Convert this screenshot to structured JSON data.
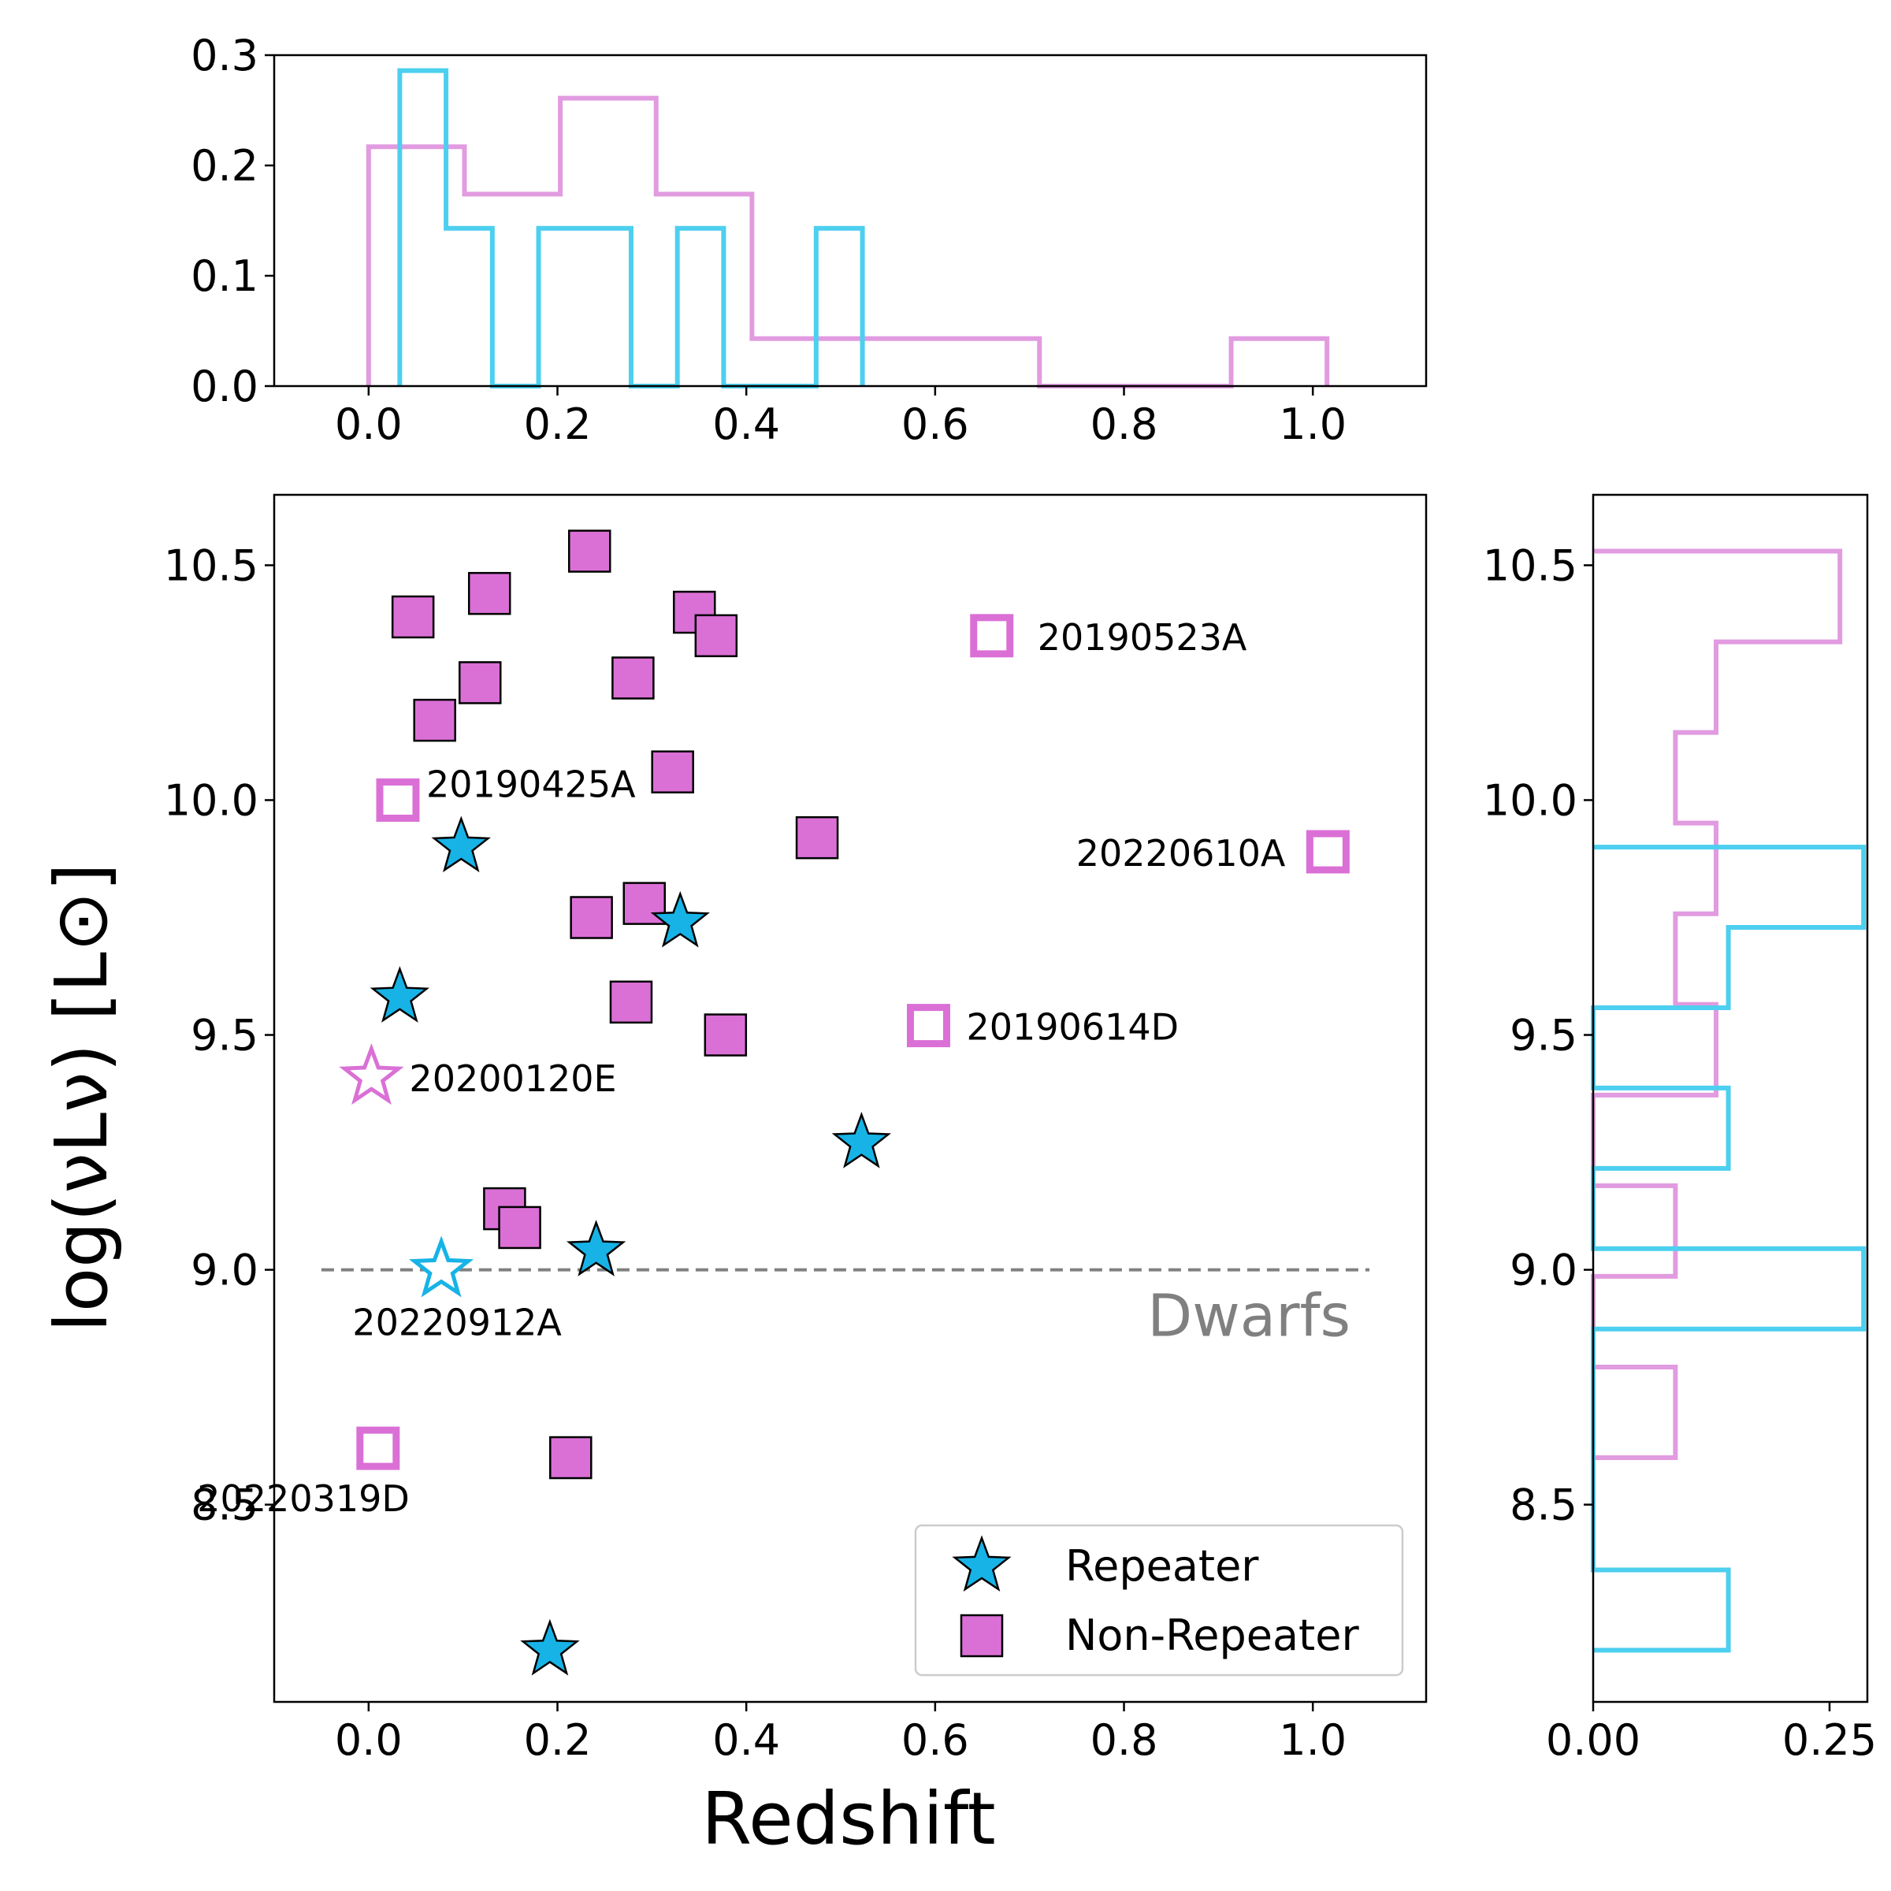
{
  "chart_data": {
    "type": "scatter",
    "xlabel": "Redshift",
    "ylabel": "log(νLν) [L⊙]",
    "xlim": [
      -0.1,
      1.12
    ],
    "ylim": [
      8.08,
      10.65
    ],
    "x_ticks": [
      "0.0",
      "0.2",
      "0.4",
      "0.6",
      "0.8",
      "1.0"
    ],
    "y_ticks": [
      "8.5",
      "9.0",
      "9.5",
      "10.0",
      "10.5"
    ],
    "legend": {
      "placement": "lower-right",
      "entries": [
        "Repeater",
        "Non-Repeater"
      ]
    },
    "colors": {
      "repeater": "#17b3e6",
      "non_repeater": "#da70d6",
      "hist_repeater": "#4dcfef",
      "hist_non_repeater": "#e19be0",
      "threshold": "#808080"
    },
    "threshold": {
      "y": 9.0,
      "x_range": [
        -0.05,
        1.06
      ],
      "label": "Dwarfs"
    },
    "series": [
      {
        "name": "Repeater",
        "marker": "star",
        "filled": [
          {
            "x": 0.098,
            "y": 9.9
          },
          {
            "x": 0.033,
            "y": 9.58
          },
          {
            "x": 0.33,
            "y": 9.74
          },
          {
            "x": 0.522,
            "y": 9.27
          },
          {
            "x": 0.241,
            "y": 9.04
          },
          {
            "x": 0.192,
            "y": 8.19
          }
        ],
        "open": [
          {
            "x": 0.003,
            "y": 9.41,
            "label": "20200120E",
            "color": "#da70d6"
          },
          {
            "x": 0.077,
            "y": 9.0,
            "label": "20220912A",
            "color": "#17b3e6"
          }
        ]
      },
      {
        "name": "Non-Repeater",
        "marker": "square",
        "filled": [
          {
            "x": 0.234,
            "y": 10.53
          },
          {
            "x": 0.128,
            "y": 10.44
          },
          {
            "x": 0.047,
            "y": 10.39
          },
          {
            "x": 0.345,
            "y": 10.4
          },
          {
            "x": 0.368,
            "y": 10.35
          },
          {
            "x": 0.118,
            "y": 10.25
          },
          {
            "x": 0.28,
            "y": 10.26
          },
          {
            "x": 0.07,
            "y": 10.17
          },
          {
            "x": 0.322,
            "y": 10.06
          },
          {
            "x": 0.475,
            "y": 9.92
          },
          {
            "x": 0.292,
            "y": 9.78
          },
          {
            "x": 0.236,
            "y": 9.75
          },
          {
            "x": 0.278,
            "y": 9.57
          },
          {
            "x": 0.378,
            "y": 9.5
          },
          {
            "x": 0.144,
            "y": 9.13
          },
          {
            "x": 0.16,
            "y": 9.09
          },
          {
            "x": 0.214,
            "y": 8.6
          }
        ],
        "open": [
          {
            "x": 0.66,
            "y": 10.35,
            "label": "20190523A"
          },
          {
            "x": 0.031,
            "y": 10.0,
            "label": "20190425A"
          },
          {
            "x": 1.016,
            "y": 9.89,
            "label": "20220610A"
          },
          {
            "x": 0.593,
            "y": 9.52,
            "label": "20190614D"
          },
          {
            "x": 0.01,
            "y": 8.62,
            "label": "20220319D"
          }
        ]
      }
    ],
    "top_histogram": {
      "xlim": [
        -0.1,
        1.12
      ],
      "ylim": [
        0,
        0.3
      ],
      "y_ticks": [
        "0.0",
        "0.1",
        "0.2",
        "0.3"
      ],
      "non_repeater": {
        "edges": [
          0.0,
          0.1015,
          0.203,
          0.3045,
          0.406,
          0.5075,
          0.609,
          0.7105,
          0.812,
          0.9135,
          1.015
        ],
        "values": [
          0.217,
          0.174,
          0.261,
          0.174,
          0.043,
          0.043,
          0.043,
          0.0,
          0.0,
          0.043
        ]
      },
      "repeater": {
        "edges": [
          0.033,
          0.082,
          0.131,
          0.18,
          0.229,
          0.278,
          0.327,
          0.376,
          0.425,
          0.474,
          0.523
        ],
        "values": [
          0.286,
          0.143,
          0.0,
          0.143,
          0.143,
          0.0,
          0.143,
          0.0,
          0.0,
          0.143
        ]
      }
    },
    "right_histogram": {
      "xlim": [
        0,
        0.29
      ],
      "ylim": [
        8.08,
        10.65
      ],
      "x_ticks": [
        "0.00",
        "0.25"
      ],
      "y_ticks": [
        "8.5",
        "9.0",
        "9.5",
        "10.0",
        "10.5"
      ],
      "non_repeater": {
        "edges": [
          8.6,
          8.793,
          8.986,
          9.179,
          9.372,
          9.565,
          9.758,
          9.951,
          10.144,
          10.337,
          10.53
        ],
        "values": [
          0.087,
          0.0,
          0.087,
          0.0,
          0.13,
          0.087,
          0.13,
          0.087,
          0.13,
          0.261
        ]
      },
      "repeater": {
        "edges": [
          8.19,
          8.361,
          8.532,
          8.703,
          8.874,
          9.045,
          9.216,
          9.387,
          9.558,
          9.729,
          9.9
        ],
        "values": [
          0.143,
          0.0,
          0.0,
          0.0,
          0.286,
          0.0,
          0.143,
          0.0,
          0.143,
          0.286
        ]
      }
    }
  }
}
